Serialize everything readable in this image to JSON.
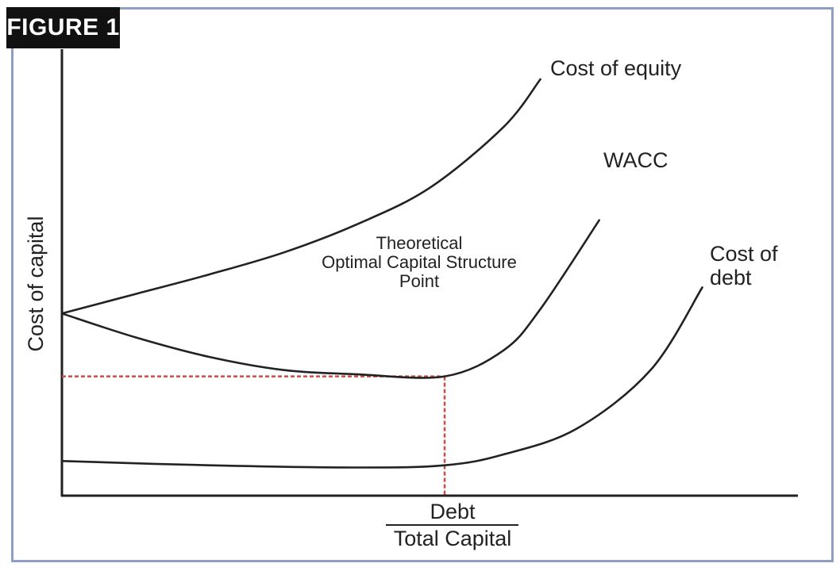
{
  "badge": "FIGURE 1",
  "chart_data": {
    "type": "line",
    "title": "",
    "ylabel": "Cost of capital",
    "xlabel_numerator": "Debt",
    "xlabel_denominator": "Total Capital",
    "annotation": {
      "lines": [
        "Theoretical",
        "Optimal Capital Structure",
        "Point"
      ]
    },
    "series": [
      {
        "name": "Cost of equity",
        "label_lines": [
          "Cost of equity"
        ],
        "x": [
          0.0,
          0.1,
          0.2,
          0.3,
          0.4,
          0.5,
          0.6,
          0.65
        ],
        "y": [
          0.37,
          0.415,
          0.46,
          0.51,
          0.575,
          0.66,
          0.8,
          0.91
        ]
      },
      {
        "name": "WACC",
        "label_lines": [
          "WACC"
        ],
        "x": [
          0.0,
          0.1,
          0.2,
          0.3,
          0.4,
          0.52,
          0.6,
          0.65,
          0.73
        ],
        "y": [
          0.37,
          0.315,
          0.27,
          0.24,
          0.23,
          0.225,
          0.285,
          0.38,
          0.585
        ]
      },
      {
        "name": "Cost of debt",
        "label_lines": [
          "Cost of",
          "debt"
        ],
        "x": [
          0.0,
          0.2,
          0.4,
          0.52,
          0.6,
          0.7,
          0.8,
          0.87
        ],
        "y": [
          0.03,
          0.02,
          0.015,
          0.02,
          0.045,
          0.105,
          0.24,
          0.43
        ]
      }
    ],
    "optimal_point": {
      "x": 0.52,
      "y": 0.225
    },
    "xlim": [
      0,
      1
    ],
    "ylim": [
      -0.05,
      0.91
    ],
    "grid": false,
    "legend": "none",
    "colors": {
      "curves": "#222222",
      "guide": "#cc4b4b",
      "frame": "#8f9ec4",
      "badge_bg": "#111111",
      "badge_text": "#ffffff"
    }
  }
}
